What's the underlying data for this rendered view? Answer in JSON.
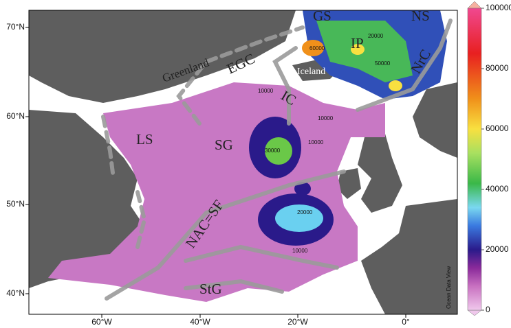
{
  "lon_labels": [
    "60°W",
    "40°W",
    "20°W",
    "0°"
  ],
  "lat_labels": [
    "70°N",
    "60°N",
    "50°N",
    "40°N"
  ],
  "colorbar": {
    "lim": [
      0,
      100000
    ],
    "ticks": [
      0,
      20000,
      40000,
      60000,
      80000,
      100000
    ]
  },
  "labels": {
    "gs": "GS",
    "ns": "NS",
    "ip": "IP",
    "nrc": "NrC",
    "egc": "EGC",
    "greenland": "Greenland",
    "iceland": "Iceland",
    "ic": "IC",
    "ls": "LS",
    "sg": "SG",
    "nac_sf": "NAC=SF",
    "stg": "StG"
  },
  "contour_labels": [
    "10000",
    "30000",
    "10000",
    "10000",
    "20000",
    "10000",
    "60000",
    "20000",
    "50000"
  ],
  "credit": "Ocean Data View"
}
